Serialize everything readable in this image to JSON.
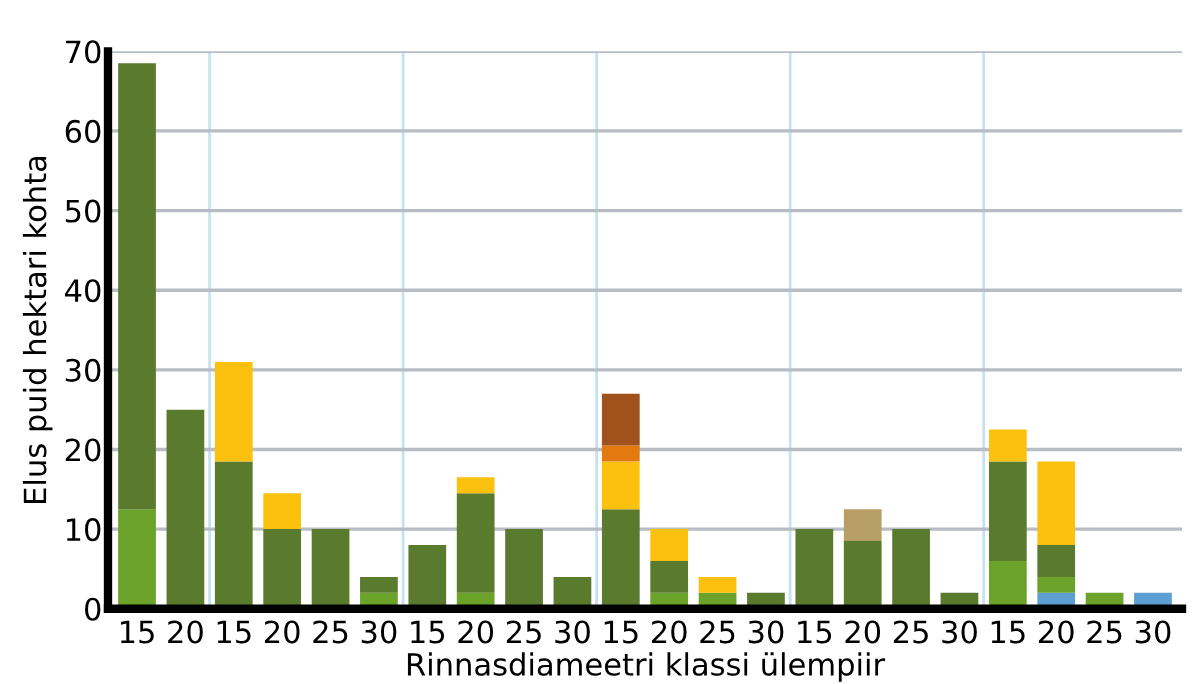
{
  "chart_data": {
    "type": "bar",
    "stacked": true,
    "xlabel": "Rinnasdiameetri klassi ülempiir",
    "ylabel": "Elus puid hektari kohta",
    "categories": [
      "15",
      "20",
      "15",
      "20",
      "25",
      "30",
      "15",
      "20",
      "25",
      "30",
      "15",
      "20",
      "25",
      "30",
      "15",
      "20",
      "25",
      "30",
      "15",
      "20",
      "25",
      "30"
    ],
    "ylim": [
      0,
      70
    ],
    "yticks": [
      0,
      10,
      20,
      30,
      40,
      50,
      60,
      70
    ],
    "grid": "y",
    "legend": false,
    "series": [
      {
        "color": "#5e9fd3",
        "values": [
          null,
          null,
          null,
          null,
          null,
          null,
          null,
          null,
          null,
          null,
          null,
          null,
          null,
          null,
          null,
          null,
          null,
          null,
          null,
          2,
          null,
          2
        ]
      },
      {
        "color": "#6aa22a",
        "values": [
          12.5,
          null,
          null,
          null,
          null,
          2,
          null,
          2,
          null,
          null,
          null,
          2,
          2,
          null,
          null,
          null,
          null,
          null,
          6,
          2,
          2,
          null
        ]
      },
      {
        "color": "#5a7a2e",
        "values": [
          56,
          25,
          18.5,
          10,
          10,
          2,
          8,
          12.5,
          10,
          4,
          12.5,
          4,
          null,
          2,
          10,
          8.5,
          10,
          2,
          12.5,
          4,
          null,
          null
        ]
      },
      {
        "color": "#b79e65",
        "values": [
          null,
          null,
          null,
          null,
          null,
          null,
          null,
          null,
          null,
          null,
          null,
          null,
          null,
          null,
          null,
          4,
          null,
          null,
          null,
          null,
          null,
          null
        ]
      },
      {
        "color": "#fcc10e",
        "values": [
          null,
          null,
          12.5,
          4.5,
          null,
          null,
          null,
          2,
          null,
          null,
          6,
          4,
          2,
          null,
          null,
          null,
          null,
          null,
          4,
          10.5,
          null,
          null
        ]
      },
      {
        "color": "#e27a10",
        "values": [
          null,
          null,
          null,
          null,
          null,
          null,
          null,
          null,
          null,
          null,
          2,
          null,
          null,
          null,
          null,
          null,
          null,
          null,
          null,
          null,
          null,
          null
        ]
      },
      {
        "color": "#a0521c",
        "values": [
          null,
          null,
          null,
          null,
          null,
          null,
          null,
          null,
          null,
          null,
          6.5,
          null,
          null,
          null,
          null,
          null,
          null,
          null,
          null,
          null,
          null,
          null
        ]
      }
    ]
  }
}
